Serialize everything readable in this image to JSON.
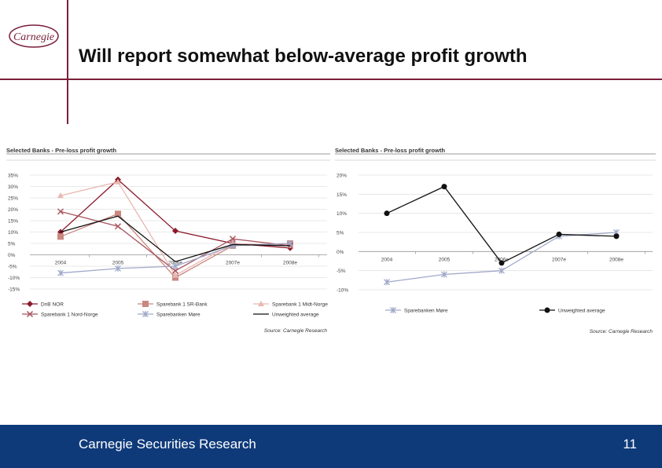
{
  "header": {
    "logo_text": "Carnegie",
    "title": "Will report somewhat below-average profit growth"
  },
  "footer": {
    "text": "Carnegie Securities Research",
    "page_number": "11"
  },
  "colors": {
    "brand": "#7a1f3a",
    "footer_bg": "#0f3a7a"
  },
  "chart_data": [
    {
      "type": "line",
      "title": "Selected Banks - Pre-loss profit growth",
      "source": "Source: Carnegie Research",
      "categories": [
        "2004",
        "2005",
        "2006e",
        "2007e",
        "2008e"
      ],
      "ylim": [
        -15,
        35
      ],
      "yticks": [
        "35%",
        "30%",
        "25%",
        "20%",
        "15%",
        "10%",
        "5%",
        "0%",
        "-5%",
        "-10%",
        "-15%"
      ],
      "grid": true,
      "legend_position": "bottom",
      "series": [
        {
          "name": "DnB NOR",
          "values": [
            10,
            33,
            10.5,
            5,
            3
          ],
          "color": "#8b1a2b",
          "marker": "diamond"
        },
        {
          "name": "Sparebank 1 SR-Bank",
          "values": [
            8,
            18,
            -10,
            4,
            5
          ],
          "color": "#c98880",
          "marker": "square"
        },
        {
          "name": "Sparebank 1 Midt-Norge",
          "values": [
            26,
            32,
            -9,
            5,
            4
          ],
          "color": "#e8b8b0",
          "marker": "triangle"
        },
        {
          "name": "Sparebank 1 Nord-Norge",
          "values": [
            19,
            12.5,
            -7,
            7,
            4
          ],
          "color": "#a85560",
          "marker": "x"
        },
        {
          "name": "Sparebanken Møre",
          "values": [
            -8,
            -6,
            -5,
            4,
            5
          ],
          "color": "#9fa8c8",
          "marker": "star"
        },
        {
          "name": "Unweighted average",
          "values": [
            10,
            17,
            -3,
            4.5,
            4
          ],
          "color": "#111111",
          "marker": "none"
        }
      ]
    },
    {
      "type": "line",
      "title": "Selected Banks - Pre-loss profit growth",
      "source": "Source: Carnegie Research",
      "categories": [
        "2004",
        "2005",
        "2006e",
        "2007e",
        "2008e"
      ],
      "ylim": [
        -10,
        20
      ],
      "yticks": [
        "20%",
        "15%",
        "10%",
        "5%",
        "0%",
        "-5%",
        "-10%"
      ],
      "grid": true,
      "legend_position": "bottom",
      "series": [
        {
          "name": "Sparebanken Møre",
          "values": [
            -8,
            -6,
            -5,
            4,
            5
          ],
          "color": "#9fa8c8",
          "marker": "star"
        },
        {
          "name": "Unweighted average",
          "values": [
            10,
            17,
            -3,
            4.5,
            4
          ],
          "color": "#111111",
          "marker": "circle"
        }
      ]
    }
  ]
}
